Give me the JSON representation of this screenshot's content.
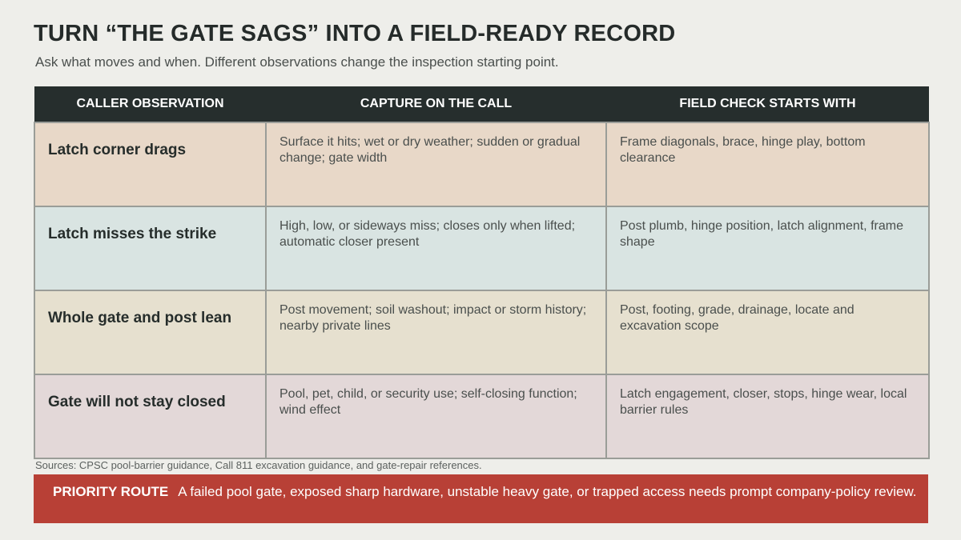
{
  "title": "TURN “THE GATE SAGS” INTO A FIELD-READY RECORD",
  "subtitle": "Ask what moves and when. Different observations change the inspection starting point.",
  "table": {
    "headers": [
      "CALLER OBSERVATION",
      "CAPTURE ON THE CALL",
      "FIELD CHECK STARTS WITH"
    ],
    "rows": [
      {
        "observation": "Latch corner drags",
        "capture": "Surface it hits; wet or dry weather; sudden or gradual change; gate width",
        "field_check": "Frame diagonals, brace, hinge play, bottom clearance",
        "color": "#e8d8c8"
      },
      {
        "observation": "Latch misses the strike",
        "capture": "High, low, or sideways miss; closes only when lifted; automatic closer present",
        "field_check": "Post plumb, hinge position, latch alignment, frame shape",
        "color": "#d9e4e2"
      },
      {
        "observation": "Whole gate and post lean",
        "capture": "Post movement; soil washout; impact or storm history; nearby private lines",
        "field_check": "Post, footing, grade, drainage, locate and excavation scope",
        "color": "#e6e0cf"
      },
      {
        "observation": "Gate will not stay closed",
        "capture": "Pool, pet, child, or security use; self-closing function; wind effect",
        "field_check": "Latch engagement, closer, stops, hinge wear, local barrier rules",
        "color": "#e3d8d8"
      }
    ]
  },
  "sources": "Sources: CPSC pool-barrier guidance, Call 811 excavation guidance, and gate-repair references.",
  "priority": {
    "label": "PRIORITY ROUTE",
    "text": "A failed pool gate, exposed sharp hardware, unstable heavy gate, or trapped access needs prompt company-policy review.",
    "color": "#b84036"
  }
}
